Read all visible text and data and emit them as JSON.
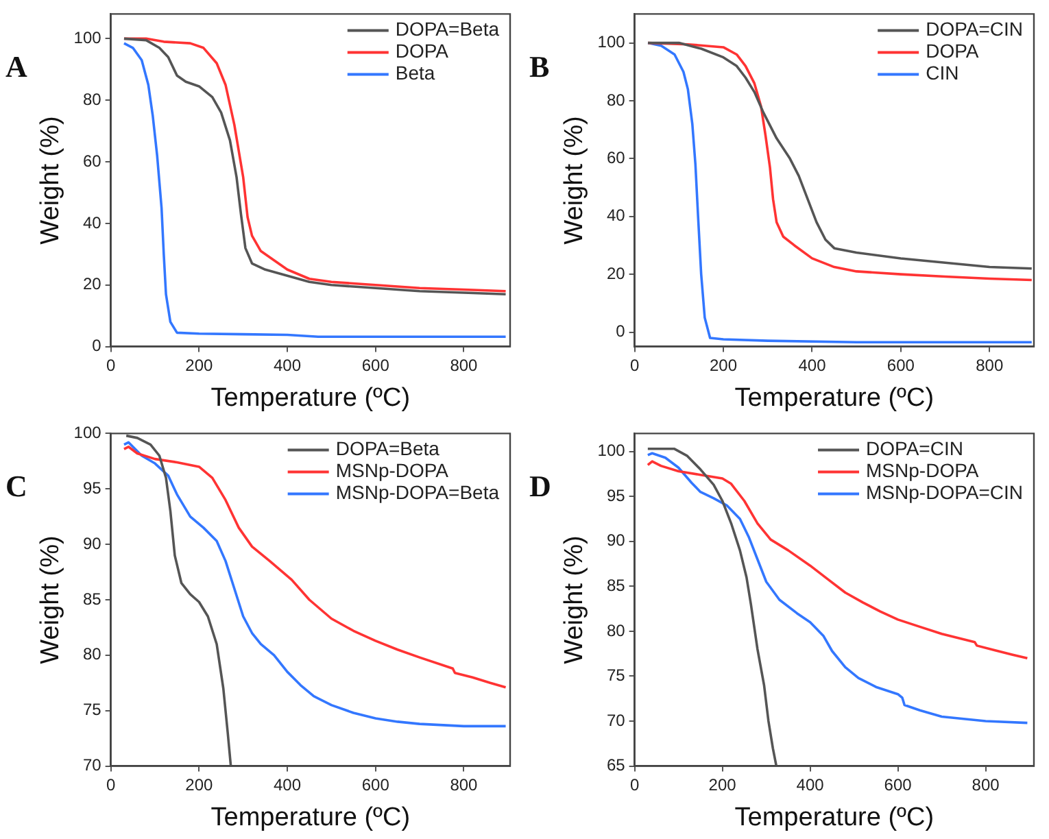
{
  "chart_data": [
    {
      "type": "line",
      "annotations": [
        "A"
      ],
      "xlabel": "Temperature (ºC)",
      "ylabel": "Weight (%)",
      "xlim": [
        0,
        905
      ],
      "xticks": [
        0,
        200,
        400,
        600,
        800
      ],
      "ylim": [
        0,
        108
      ],
      "yticks": [
        0,
        20,
        40,
        60,
        80,
        100
      ],
      "grid": false,
      "legend": "top right",
      "marker": "none",
      "line_style": "solid",
      "series": [
        {
          "name": "DOPA=Beta",
          "color": "#555555",
          "x": [
            30,
            80,
            110,
            130,
            150,
            170,
            200,
            230,
            250,
            270,
            285,
            295,
            305,
            320,
            350,
            400,
            450,
            500,
            600,
            700,
            800,
            895
          ],
          "values": [
            100,
            99.5,
            97,
            94,
            88,
            86,
            84.5,
            81,
            76,
            67,
            55,
            43,
            32,
            27,
            25,
            23,
            21,
            20,
            19,
            18,
            17.5,
            17
          ]
        },
        {
          "name": "DOPA",
          "color": "#ff3333",
          "x": [
            30,
            80,
            120,
            180,
            210,
            240,
            260,
            280,
            300,
            310,
            320,
            340,
            370,
            400,
            450,
            500,
            600,
            700,
            800,
            895
          ],
          "values": [
            100,
            100,
            99,
            98.5,
            97,
            92,
            85,
            72,
            55,
            42,
            36,
            31,
            28,
            25,
            22,
            21,
            20,
            19,
            18.5,
            18
          ]
        },
        {
          "name": "Beta",
          "color": "#3377ff",
          "x": [
            30,
            50,
            70,
            85,
            95,
            105,
            115,
            120,
            125,
            135,
            150,
            200,
            300,
            400,
            470,
            600,
            895
          ],
          "values": [
            98.5,
            97,
            93,
            85,
            75,
            62,
            45,
            30,
            17,
            8,
            4.5,
            4.2,
            4,
            3.8,
            3.2,
            3.2,
            3.2
          ]
        }
      ]
    },
    {
      "type": "line",
      "annotations": [
        "B"
      ],
      "xlabel": "Temperature (ºC)",
      "ylabel": "Weight (%)",
      "xlim": [
        0,
        900
      ],
      "xticks": [
        0,
        200,
        400,
        600,
        800
      ],
      "ylim": [
        -5,
        110
      ],
      "yticks": [
        0,
        20,
        40,
        60,
        80,
        100
      ],
      "grid": false,
      "legend": "top right",
      "marker": "none",
      "line_style": "solid",
      "series": [
        {
          "name": "DOPA=CIN",
          "color": "#555555",
          "x": [
            30,
            100,
            150,
            200,
            230,
            250,
            270,
            290,
            320,
            350,
            370,
            390,
            410,
            430,
            450,
            500,
            600,
            700,
            800,
            895
          ],
          "values": [
            100,
            100,
            98,
            95,
            92,
            88,
            83,
            76,
            67,
            60,
            54,
            46,
            38,
            32,
            29,
            27.5,
            25.5,
            24,
            22.5,
            22
          ]
        },
        {
          "name": "DOPA",
          "color": "#ff3333",
          "x": [
            30,
            120,
            200,
            230,
            250,
            270,
            285,
            295,
            305,
            312,
            320,
            335,
            360,
            400,
            450,
            500,
            600,
            700,
            800,
            895
          ],
          "values": [
            100,
            99.5,
            98.5,
            96,
            92,
            86,
            78,
            68,
            57,
            46,
            38,
            33,
            30,
            25.5,
            22.5,
            21,
            20,
            19.2,
            18.5,
            18
          ]
        },
        {
          "name": "CIN",
          "color": "#3377ff",
          "x": [
            30,
            60,
            90,
            110,
            120,
            130,
            137,
            143,
            150,
            158,
            170,
            200,
            300,
            500,
            895
          ],
          "values": [
            100,
            99,
            96,
            90,
            84,
            72,
            58,
            40,
            20,
            5,
            -2,
            -2.5,
            -3,
            -3.5,
            -3.5
          ]
        }
      ]
    },
    {
      "type": "line",
      "annotations": [
        "C"
      ],
      "xlabel": "Temperature (ºC)",
      "ylabel": "Weight (%)",
      "xlim": [
        0,
        905
      ],
      "xticks": [
        0,
        200,
        400,
        600,
        800
      ],
      "ylim": [
        70,
        100
      ],
      "yticks": [
        70,
        75,
        80,
        85,
        90,
        95,
        100
      ],
      "grid": false,
      "legend": "top right",
      "marker": "none",
      "line_style": "solid",
      "series": [
        {
          "name": "DOPA=Beta",
          "color": "#555555",
          "x": [
            35,
            60,
            90,
            110,
            125,
            135,
            145,
            160,
            180,
            200,
            220,
            240,
            255,
            265,
            272
          ],
          "values": [
            99.8,
            99.6,
            99,
            98,
            96,
            93,
            89,
            86.5,
            85.5,
            84.8,
            83.5,
            81,
            77,
            73,
            70
          ]
        },
        {
          "name": "MSNp-DOPA",
          "color": "#ff3333",
          "x": [
            30,
            40,
            60,
            100,
            150,
            200,
            230,
            260,
            290,
            320,
            360,
            410,
            450,
            500,
            550,
            600,
            650,
            700,
            775,
            780,
            820,
            860,
            895
          ],
          "values": [
            98.6,
            98.8,
            98.2,
            97.7,
            97.4,
            97,
            96,
            94,
            91.5,
            89.8,
            88.5,
            86.8,
            85,
            83.3,
            82.2,
            81.3,
            80.5,
            79.8,
            78.8,
            78.4,
            78,
            77.5,
            77.1
          ]
        },
        {
          "name": "MSNp-DOPA=Beta",
          "color": "#3377ff",
          "x": [
            30,
            40,
            70,
            100,
            130,
            150,
            180,
            210,
            240,
            260,
            280,
            300,
            320,
            340,
            370,
            400,
            430,
            460,
            500,
            550,
            600,
            650,
            700,
            800,
            895
          ],
          "values": [
            99,
            99.2,
            98,
            97.3,
            96.2,
            94.5,
            92.5,
            91.5,
            90.3,
            88.5,
            86,
            83.5,
            82,
            81,
            80,
            78.5,
            77.3,
            76.3,
            75.5,
            74.8,
            74.3,
            74,
            73.8,
            73.6,
            73.6
          ]
        }
      ]
    },
    {
      "type": "line",
      "annotations": [
        "D"
      ],
      "xlabel": "Temperature (ºC)",
      "ylabel": "Weight (%)",
      "xlim": [
        0,
        910
      ],
      "xticks": [
        0,
        200,
        400,
        600,
        800
      ],
      "ylim": [
        65,
        102
      ],
      "yticks": [
        65,
        70,
        75,
        80,
        85,
        90,
        95,
        100
      ],
      "grid": false,
      "legend": "top right",
      "marker": "none",
      "line_style": "solid",
      "series": [
        {
          "name": "DOPA=CIN",
          "color": "#555555",
          "x": [
            30,
            90,
            120,
            150,
            180,
            200,
            220,
            240,
            255,
            265,
            280,
            295,
            305,
            315,
            323
          ],
          "values": [
            100.3,
            100.3,
            99.5,
            98,
            96.3,
            94.5,
            92,
            89,
            86,
            83,
            78,
            74,
            70,
            67,
            65
          ]
        },
        {
          "name": "MSNp-DOPA",
          "color": "#ff3333",
          "x": [
            30,
            40,
            60,
            100,
            150,
            200,
            220,
            250,
            280,
            310,
            350,
            400,
            440,
            480,
            520,
            560,
            600,
            650,
            700,
            775,
            780,
            820,
            860,
            895
          ],
          "values": [
            98.5,
            98.9,
            98.4,
            97.8,
            97.4,
            97,
            96.4,
            94.5,
            92,
            90.2,
            89,
            87.3,
            85.8,
            84.3,
            83.2,
            82.2,
            81.3,
            80.5,
            79.7,
            78.8,
            78.4,
            77.9,
            77.4,
            77
          ]
        },
        {
          "name": "MSNp-DOPA=CIN",
          "color": "#3377ff",
          "x": [
            30,
            40,
            70,
            100,
            130,
            150,
            180,
            210,
            240,
            260,
            280,
            300,
            330,
            370,
            400,
            430,
            450,
            480,
            510,
            550,
            600,
            610,
            615,
            650,
            700,
            800,
            895
          ],
          "values": [
            99.6,
            99.8,
            99.3,
            98.2,
            96.5,
            95.5,
            94.8,
            94,
            92.5,
            90.5,
            88,
            85.5,
            83.5,
            82,
            81,
            79.5,
            77.8,
            76,
            74.8,
            73.8,
            73,
            72.6,
            71.8,
            71.2,
            70.5,
            70,
            69.8
          ]
        }
      ]
    }
  ]
}
